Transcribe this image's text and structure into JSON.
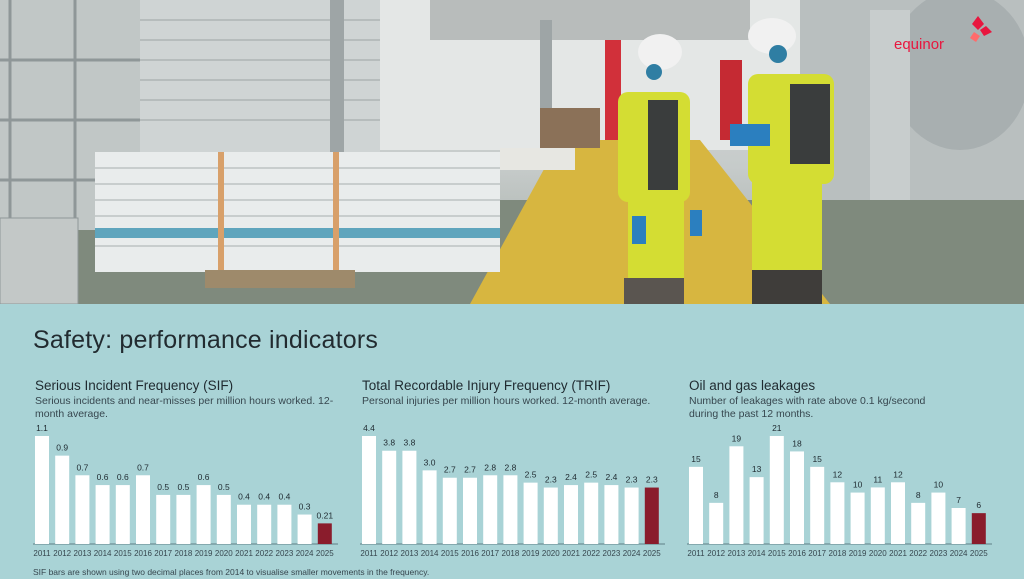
{
  "logo": {
    "text": "equinor",
    "color": "#e8163e"
  },
  "page_title": "Safety: performance indicators",
  "footnote": "SIF bars are shown using two decimal places from 2014 to visualise smaller movements in the frequency.",
  "colors": {
    "bar": "#ffffff",
    "highlight": "#8a1c2c",
    "background": "#a9d3d6",
    "axis": "#5f7f85"
  },
  "chart_data": [
    {
      "type": "bar",
      "title": "Serious Incident Frequency (SIF)",
      "subtitle": "Serious incidents and near-misses per million hours worked. 12-month average.",
      "categories": [
        "2011",
        "2012",
        "2013",
        "2014",
        "2015",
        "2016",
        "2017",
        "2018",
        "2019",
        "2020",
        "2021",
        "2022",
        "2023",
        "2024",
        "2025"
      ],
      "values": [
        1.1,
        0.9,
        0.7,
        0.6,
        0.6,
        0.7,
        0.5,
        0.5,
        0.6,
        0.5,
        0.4,
        0.4,
        0.4,
        0.3,
        0.21
      ],
      "labels": [
        "1.1",
        "0.9",
        "0.7",
        "0.6",
        "0.6",
        "0.7",
        "0.5",
        "0.5",
        "0.6",
        "0.5",
        "0.4",
        "0.4",
        "0.4",
        "0.3",
        "0.21"
      ],
      "ylim": [
        0,
        1.1
      ],
      "highlight_index": 14
    },
    {
      "type": "bar",
      "title": "Total Recordable Injury Frequency (TRIF)",
      "subtitle": "Personal injuries per million hours worked. 12-month average.",
      "categories": [
        "2011",
        "2012",
        "2013",
        "2014",
        "2015",
        "2016",
        "2017",
        "2018",
        "2019",
        "2020",
        "2021",
        "2022",
        "2023",
        "2024",
        "2025"
      ],
      "values": [
        4.4,
        3.8,
        3.8,
        3.0,
        2.7,
        2.7,
        2.8,
        2.8,
        2.5,
        2.3,
        2.4,
        2.5,
        2.4,
        2.3,
        2.3
      ],
      "labels": [
        "4.4",
        "3.8",
        "3.8",
        "3.0",
        "2.7",
        "2.7",
        "2.8",
        "2.8",
        "2.5",
        "2.3",
        "2.4",
        "2.5",
        "2.4",
        "2.3",
        "2.3"
      ],
      "ylim": [
        0,
        4.4
      ],
      "highlight_index": 14
    },
    {
      "type": "bar",
      "title": "Oil and gas leakages",
      "subtitle": "Number of leakages with rate above 0.1 kg/second during the past 12 months.",
      "categories": [
        "2011",
        "2012",
        "2013",
        "2014",
        "2015",
        "2016",
        "2017",
        "2018",
        "2019",
        "2020",
        "2021",
        "2022",
        "2023",
        "2024",
        "2025"
      ],
      "values": [
        15,
        8,
        19,
        13,
        21,
        18,
        15,
        12,
        10,
        11,
        12,
        8,
        10,
        7,
        6
      ],
      "labels": [
        "15",
        "8",
        "19",
        "13",
        "21",
        "18",
        "15",
        "12",
        "10",
        "11",
        "12",
        "8",
        "10",
        "7",
        "6"
      ],
      "ylim": [
        0,
        21
      ],
      "highlight_index": 14
    }
  ]
}
